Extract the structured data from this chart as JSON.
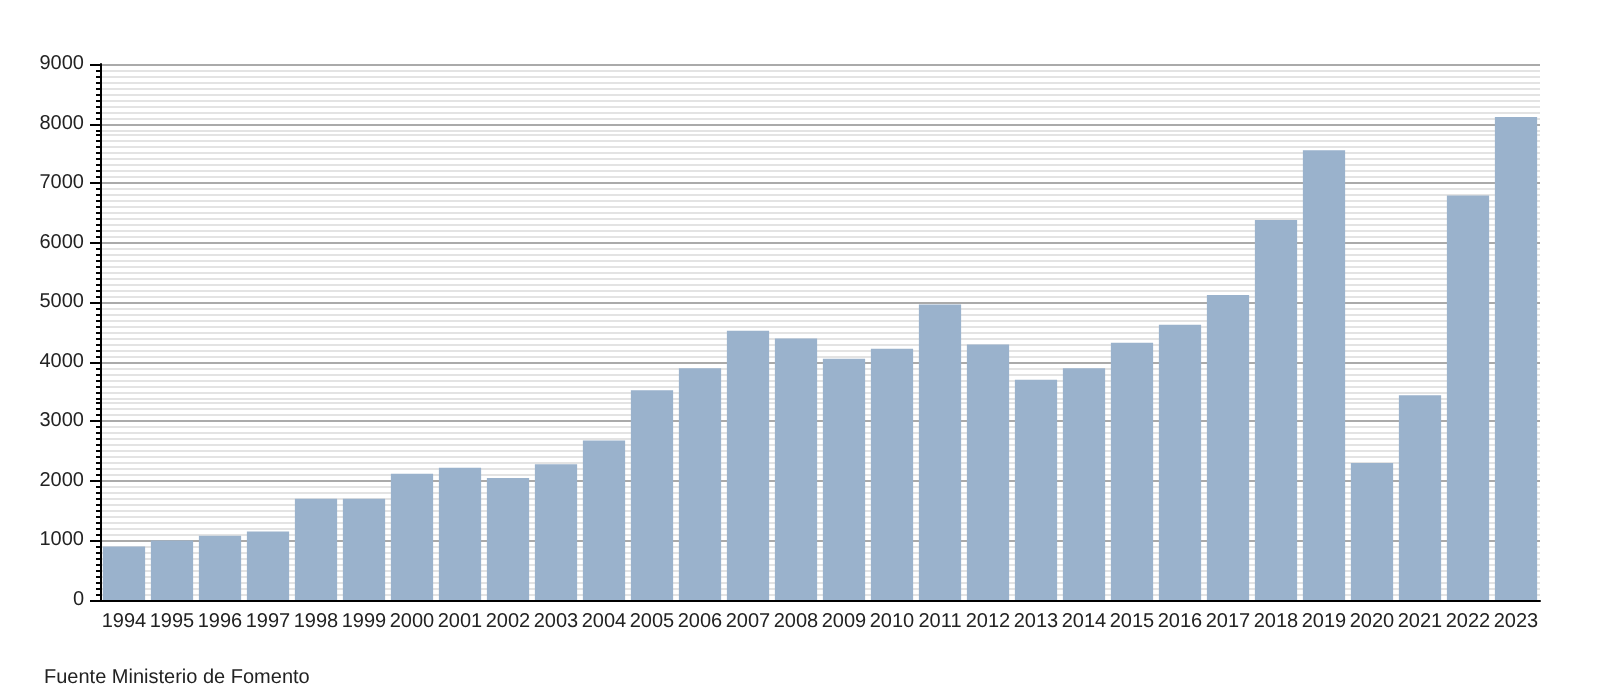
{
  "chart_data": {
    "type": "bar",
    "categories": [
      "1994",
      "1995",
      "1996",
      "1997",
      "1998",
      "1999",
      "2000",
      "2001",
      "2002",
      "2003",
      "2004",
      "2005",
      "2006",
      "2007",
      "2008",
      "2009",
      "2010",
      "2011",
      "2012",
      "2013",
      "2014",
      "2015",
      "2016",
      "2017",
      "2018",
      "2019",
      "2020",
      "2021",
      "2022",
      "2023"
    ],
    "values": [
      900,
      1000,
      1080,
      1150,
      1700,
      1700,
      2120,
      2220,
      2050,
      2280,
      2680,
      3520,
      3890,
      4520,
      4390,
      4050,
      4220,
      4960,
      4290,
      3700,
      3890,
      4320,
      4620,
      5120,
      6380,
      7550,
      2300,
      3440,
      6790,
      8110
    ],
    "color": "#9ab2cc",
    "ylim": [
      0,
      9000
    ],
    "yticks": [
      0,
      1000,
      2000,
      3000,
      4000,
      5000,
      6000,
      7000,
      8000,
      9000
    ],
    "grid": "y",
    "annotations": [
      "Fuente Ministerio de Fomento"
    ]
  }
}
